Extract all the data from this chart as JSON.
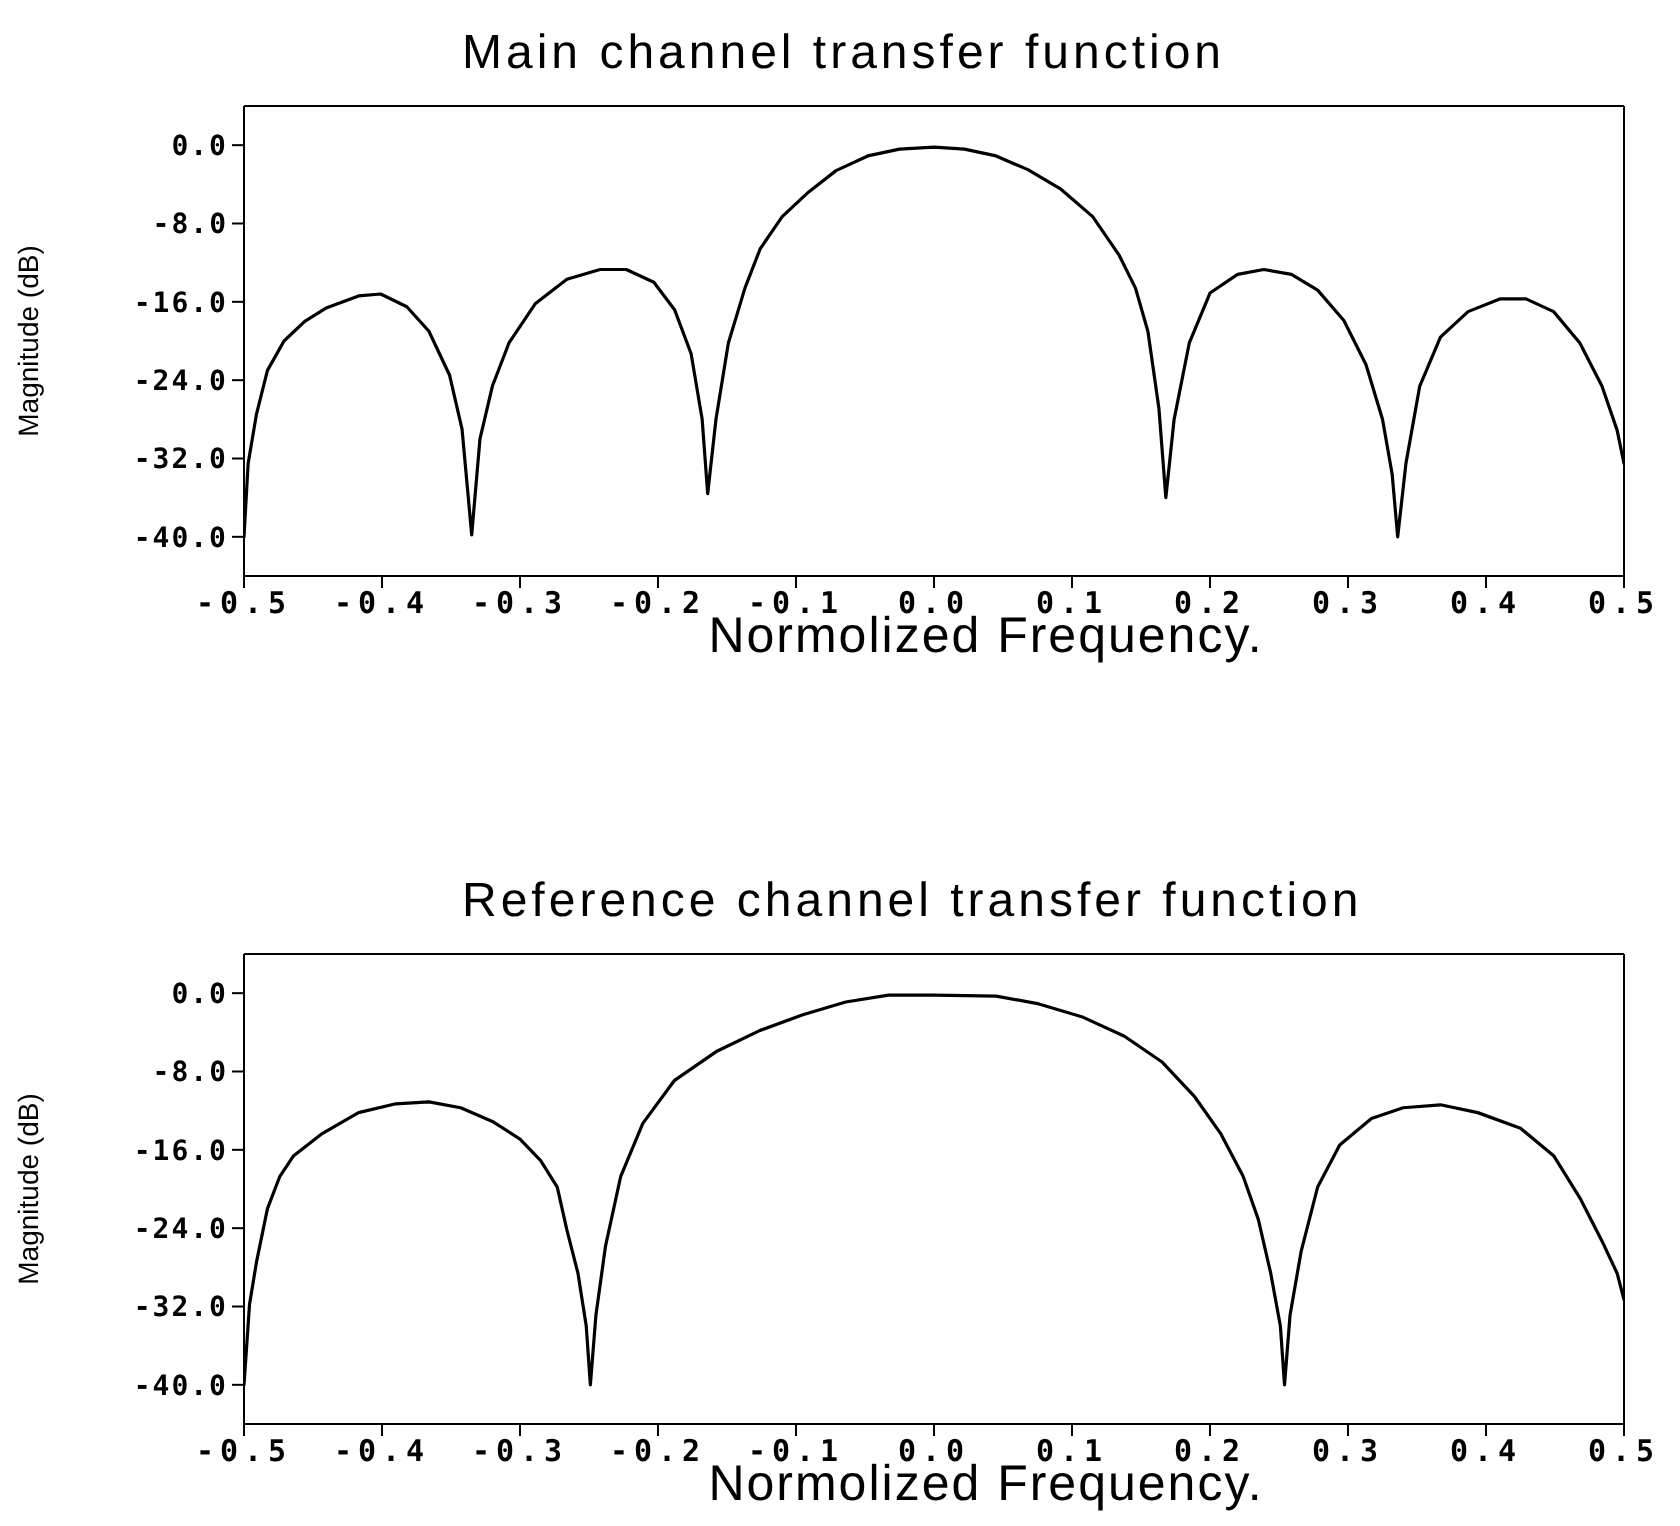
{
  "chart_data": [
    {
      "type": "line",
      "title": "Main channel transfer function",
      "xlabel": "Normolized Frequency.",
      "ylabel": "Magnitude (dB)",
      "color": "#000000",
      "xlim": [
        -0.5,
        0.5
      ],
      "xticks": [
        -0.5,
        -0.4,
        -0.3,
        -0.2,
        -0.1,
        {
          "value": 0,
          "label": "0.0"
        },
        0.1,
        0.2,
        0.3,
        0.4,
        0.5
      ],
      "ylim": [
        -44,
        4
      ],
      "yticks": [
        {
          "value": 0,
          "label": "0.0"
        },
        {
          "value": -8,
          "label": "-8.0"
        },
        {
          "value": -16,
          "label": "-16.0"
        },
        {
          "value": -24,
          "label": "-24.0"
        },
        {
          "value": -32,
          "label": "-32.0"
        },
        {
          "value": -40,
          "label": "-40.0"
        }
      ],
      "x": [
        -0.5,
        -0.497,
        -0.491,
        -0.483,
        -0.471,
        -0.456,
        -0.44,
        -0.417,
        -0.401,
        -0.382,
        -0.366,
        -0.351,
        -0.342,
        -0.335,
        -0.329,
        -0.32,
        -0.308,
        -0.289,
        -0.266,
        -0.242,
        -0.223,
        -0.203,
        -0.188,
        -0.176,
        -0.168,
        -0.164,
        -0.158,
        -0.149,
        -0.137,
        -0.126,
        -0.11,
        -0.091,
        -0.071,
        -0.048,
        -0.025,
        0,
        0.022,
        0.045,
        0.068,
        0.092,
        0.115,
        0.134,
        0.146,
        0.155,
        0.163,
        0.168,
        0.174,
        0.185,
        0.2,
        0.22,
        0.239,
        0.259,
        0.278,
        0.297,
        0.313,
        0.325,
        0.332,
        0.336,
        0.342,
        0.352,
        0.367,
        0.387,
        0.41,
        0.429,
        0.449,
        0.468,
        0.484,
        0.495,
        0.5
      ],
      "values": [
        -40,
        -32.5,
        -27.5,
        -23,
        -20,
        -18,
        -16.6,
        -15.4,
        -15.2,
        -16.5,
        -19,
        -23.5,
        -29,
        -39.8,
        -30,
        -24.6,
        -20.2,
        -16.2,
        -13.7,
        -12.7,
        -12.7,
        -14,
        -16.8,
        -21.3,
        -28,
        -35.6,
        -28,
        -20.2,
        -14.6,
        -10.6,
        -7.3,
        -4.8,
        -2.6,
        -1.1,
        -0.4,
        -0.2,
        -0.4,
        -1.1,
        -2.5,
        -4.5,
        -7.3,
        -11.2,
        -14.6,
        -19,
        -26.9,
        -36,
        -28,
        -20.2,
        -15.1,
        -13.2,
        -12.7,
        -13.2,
        -14.8,
        -17.9,
        -22.4,
        -28,
        -33.6,
        -40,
        -32.5,
        -24.6,
        -19.6,
        -17,
        -15.7,
        -15.7,
        -17,
        -20.2,
        -24.6,
        -29.1,
        -32.5
      ]
    },
    {
      "type": "line",
      "title": "Reference channel transfer function",
      "xlabel": "Normolized Frequency.",
      "ylabel": "Magnitude (dB)",
      "color": "#000000",
      "xlim": [
        -0.5,
        0.5
      ],
      "xticks": [
        -0.5,
        -0.4,
        -0.3,
        -0.2,
        -0.1,
        {
          "value": 0,
          "label": "0.0"
        },
        0.1,
        0.2,
        0.3,
        0.4,
        0.5
      ],
      "ylim": [
        -44,
        4
      ],
      "yticks": [
        {
          "value": 0,
          "label": "0.0"
        },
        {
          "value": -8,
          "label": "-8.0"
        },
        {
          "value": -16,
          "label": "-16.0"
        },
        {
          "value": -24,
          "label": "-24.0"
        },
        {
          "value": -32,
          "label": "-32.0"
        },
        {
          "value": -40,
          "label": "-40.0"
        }
      ],
      "x": [
        -0.5,
        -0.496,
        -0.491,
        -0.483,
        -0.474,
        -0.464,
        -0.444,
        -0.417,
        -0.39,
        -0.366,
        -0.343,
        -0.32,
        -0.3,
        -0.285,
        -0.273,
        -0.266,
        -0.258,
        -0.252,
        -0.249,
        -0.245,
        -0.238,
        -0.227,
        -0.211,
        -0.188,
        -0.157,
        -0.126,
        -0.095,
        -0.064,
        -0.033,
        0,
        0.045,
        0.076,
        0.107,
        0.138,
        0.165,
        0.189,
        0.208,
        0.224,
        0.235,
        0.244,
        0.251,
        0.254,
        0.258,
        0.266,
        0.278,
        0.294,
        0.317,
        0.34,
        0.367,
        0.394,
        0.425,
        0.449,
        0.468,
        0.484,
        0.495,
        0.5
      ],
      "values": [
        -40,
        -31.8,
        -27.5,
        -22,
        -18.7,
        -16.6,
        -14.4,
        -12.2,
        -11.3,
        -11.1,
        -11.7,
        -13.1,
        -14.9,
        -17.1,
        -19.8,
        -24.2,
        -28.6,
        -34,
        -40,
        -32.9,
        -25.8,
        -18.7,
        -13.3,
        -8.9,
        -5.9,
        -3.8,
        -2.2,
        -0.9,
        -0.2,
        -0.2,
        -0.3,
        -1.1,
        -2.4,
        -4.4,
        -7,
        -10.6,
        -14.4,
        -18.7,
        -23.1,
        -28.6,
        -34,
        -40,
        -32.9,
        -26.4,
        -19.8,
        -15.5,
        -12.8,
        -11.7,
        -11.4,
        -12.2,
        -13.8,
        -16.6,
        -20.9,
        -25.3,
        -28.6,
        -31.3
      ]
    }
  ]
}
